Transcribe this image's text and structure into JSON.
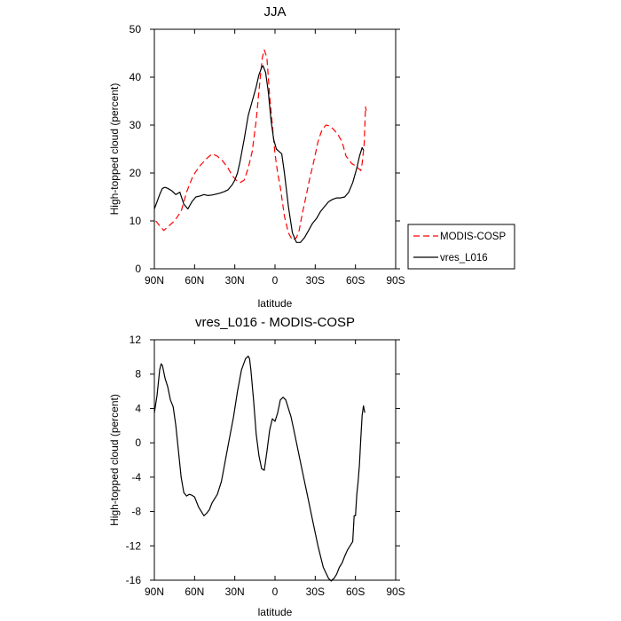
{
  "chart_data": [
    {
      "type": "line",
      "title": "JJA",
      "xlabel": "latitude",
      "ylabel": "High-topped cloud (percent)",
      "xlim": [
        -90,
        90
      ],
      "ylim": [
        0,
        50
      ],
      "x_ticks": [
        -90,
        -60,
        -30,
        0,
        30,
        60,
        90
      ],
      "x_tick_labels": [
        "90N",
        "60N",
        "30N",
        "0",
        "30S",
        "60S",
        "90S"
      ],
      "y_ticks": [
        0,
        10,
        20,
        30,
        40,
        50
      ],
      "y_tick_labels": [
        "0",
        "10",
        "20",
        "30",
        "40",
        "50"
      ],
      "legend": {
        "placement": "outside-right",
        "entries": [
          "MODIS-COSP",
          "vres_L016"
        ]
      },
      "series": [
        {
          "name": "MODIS-COSP",
          "style": "dashed",
          "color": "#ff0000",
          "x": [
            -89,
            -86,
            -83,
            -79,
            -75,
            -70,
            -66,
            -61,
            -56,
            -51,
            -47,
            -43,
            -39,
            -35,
            -32,
            -29,
            -26,
            -23,
            -20,
            -17,
            -14,
            -11,
            -9.5,
            -8,
            -6,
            -4,
            -2,
            0,
            2,
            4,
            7,
            10,
            13,
            16,
            18,
            20,
            23,
            26,
            29,
            32,
            35,
            38,
            41,
            44,
            47,
            50,
            53,
            56,
            57,
            60,
            62,
            64,
            65,
            66.5,
            67.5,
            68
          ],
          "y": [
            10,
            9,
            8,
            9,
            10,
            12,
            16,
            19.5,
            21.5,
            23,
            24,
            23.5,
            22.5,
            21,
            19.5,
            18.5,
            18,
            18.5,
            21,
            24.5,
            31,
            40,
            44,
            45.7,
            44,
            36,
            30,
            24,
            20,
            17,
            11,
            7.5,
            6,
            6.5,
            8,
            11,
            15,
            19,
            22.5,
            26.5,
            29,
            30,
            29.8,
            29,
            28,
            26.5,
            23.5,
            22.5,
            22,
            21.5,
            21,
            20.5,
            22,
            26,
            33.8,
            33
          ]
        },
        {
          "name": "vres_L016",
          "style": "solid",
          "color": "#000000",
          "x": [
            -90,
            -88,
            -86,
            -84,
            -82,
            -80,
            -77,
            -74,
            -71,
            -68,
            -65,
            -62,
            -59,
            -56,
            -53,
            -50,
            -47,
            -44,
            -41,
            -38,
            -35,
            -32,
            -30,
            -28,
            -26,
            -23,
            -20,
            -17,
            -14,
            -12,
            -10,
            -9,
            -7,
            -5,
            -3,
            -1,
            1,
            3,
            5,
            7,
            10,
            13,
            16,
            19,
            22,
            25,
            28,
            31,
            34,
            37,
            40,
            43,
            46,
            49,
            52,
            55,
            58,
            61,
            63,
            65,
            66
          ],
          "y": [
            12.5,
            14,
            15.5,
            16.8,
            17,
            16.8,
            16.3,
            15.5,
            16,
            13.5,
            12.5,
            14,
            15,
            15.2,
            15.5,
            15.3,
            15.4,
            15.6,
            15.8,
            16.1,
            16.5,
            17.5,
            18.5,
            20,
            22.5,
            27,
            32,
            35,
            38,
            40.5,
            42,
            42.4,
            41,
            37,
            31,
            27,
            25,
            24.5,
            24,
            20,
            13,
            7.5,
            5.5,
            5.5,
            6.5,
            8,
            9.5,
            10.5,
            12,
            13,
            14,
            14.5,
            14.8,
            14.8,
            15,
            16,
            18,
            21,
            23.5,
            25.3,
            24.8
          ]
        }
      ]
    },
    {
      "type": "line",
      "title": "vres_L016 - MODIS-COSP",
      "xlabel": "latitude",
      "ylabel": "High-topped cloud (percent)",
      "xlim": [
        -90,
        90
      ],
      "ylim": [
        -16,
        12
      ],
      "x_ticks": [
        -90,
        -60,
        -30,
        0,
        30,
        60,
        90
      ],
      "x_tick_labels": [
        "90N",
        "60N",
        "30N",
        "0",
        "30S",
        "60S",
        "90S"
      ],
      "y_ticks": [
        -16,
        -12,
        -8,
        -4,
        0,
        4,
        8,
        12
      ],
      "y_tick_labels": [
        "-16",
        "-12",
        "-8",
        "-4",
        "0",
        "4",
        "8",
        "12"
      ],
      "series": [
        {
          "name": "vres_L016 - MODIS-COSP",
          "style": "solid",
          "color": "#000000",
          "x": [
            -90,
            -88,
            -86,
            -85,
            -84,
            -82,
            -80,
            -78,
            -76,
            -74,
            -72,
            -70,
            -68,
            -66,
            -64,
            -62,
            -60,
            -57,
            -55,
            -53,
            -51,
            -49,
            -47,
            -45,
            -43,
            -40,
            -37,
            -34,
            -31,
            -28,
            -25,
            -22,
            -20,
            -19,
            -18,
            -16,
            -14,
            -12,
            -10,
            -8,
            -6,
            -4,
            -2,
            0,
            2,
            4,
            6,
            8,
            10,
            12,
            14,
            16,
            20,
            24,
            28,
            32,
            36,
            40,
            42,
            43,
            44,
            46,
            48,
            50,
            52,
            54,
            56,
            58,
            59,
            60,
            61,
            62,
            63,
            64,
            65,
            66,
            67
          ],
          "y": [
            3.5,
            5.5,
            8.5,
            9.2,
            9,
            7.5,
            6.5,
            5,
            4.2,
            2,
            -1,
            -4,
            -5.8,
            -6.2,
            -6,
            -6.1,
            -6.3,
            -7.5,
            -8,
            -8.5,
            -8.2,
            -7.8,
            -7,
            -6.5,
            -6,
            -4.5,
            -2,
            0.5,
            3,
            6,
            8.5,
            9.8,
            10.1,
            9.8,
            8.5,
            5,
            1,
            -1.5,
            -3,
            -3.2,
            -1,
            1.5,
            2.8,
            2.5,
            3.5,
            5,
            5.3,
            5,
            4,
            3,
            1.5,
            0,
            -3,
            -6,
            -9,
            -12,
            -14.5,
            -15.8,
            -16.1,
            -15.9,
            -15.8,
            -15.3,
            -14.5,
            -14,
            -13.2,
            -12.5,
            -12,
            -11.5,
            -8.5,
            -8.5,
            -6,
            -4.5,
            -2.5,
            0.5,
            3.2,
            4.3,
            3.5
          ]
        }
      ]
    }
  ]
}
